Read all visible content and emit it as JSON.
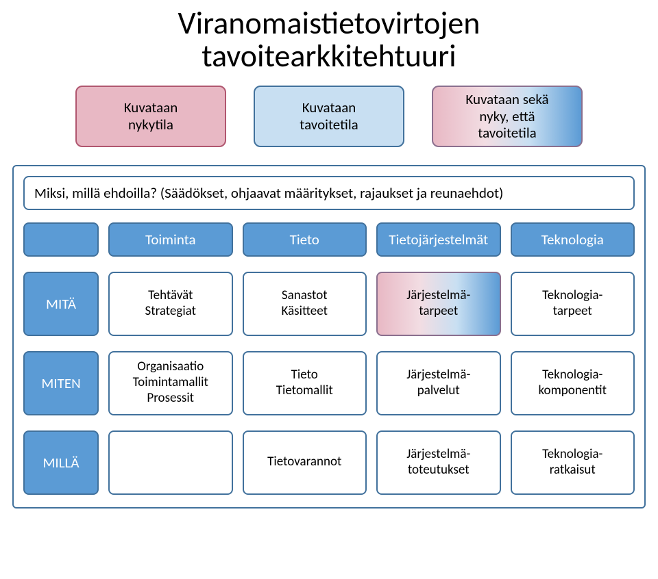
{
  "title_line1": "Viranomaistietovirtojen",
  "title_line2": "tavoitearkkitehtuuri",
  "colors": {
    "blue_border": "#41719c",
    "blue_fill": "#5b9bd5",
    "blue_light": "#c8dff2",
    "pink_border": "#b0566f",
    "pink_fill": "#e8b8c4",
    "pink_light": "#f2dde3",
    "grad_border": "#8a6f8e"
  },
  "top_boxes": [
    {
      "text": "Kuvataan\nnykytila",
      "fill_mode": "pink"
    },
    {
      "text": "Kuvataan\ntavoitetila",
      "fill_mode": "blue"
    },
    {
      "text": "Kuvataan sekä\nnyky, että\ntavoitetila",
      "fill_mode": "gradient"
    }
  ],
  "miksi_text": "Miksi, millä ehdoilla? (Säädökset, ohjaavat määritykset, rajaukset ja reunaehdot)",
  "col_headers": [
    {
      "label": ""
    },
    {
      "label": "Toiminta"
    },
    {
      "label": "Tieto"
    },
    {
      "label": "Tietojärjestelmät"
    },
    {
      "label": "Teknologia"
    }
  ],
  "rows": [
    {
      "label": "MITÄ",
      "cells": [
        {
          "text": "Tehtävät\nStrategiat",
          "fill_mode": "white"
        },
        {
          "text": "Sanastot\nKäsitteet",
          "fill_mode": "white"
        },
        {
          "text": "Järjestelmä-\ntarpeet",
          "fill_mode": "gradient"
        },
        {
          "text": "Teknologia-\ntarpeet",
          "fill_mode": "white"
        }
      ]
    },
    {
      "label": "MITEN",
      "cells": [
        {
          "text": "Organisaatio\nToimintamallit\nProsessit",
          "fill_mode": "white"
        },
        {
          "text": "Tieto\nTietomallit",
          "fill_mode": "white"
        },
        {
          "text": "Järjestelmä-\npalvelut",
          "fill_mode": "white"
        },
        {
          "text": "Teknologia-\nkomponentit",
          "fill_mode": "white"
        }
      ]
    },
    {
      "label": "MILLÄ",
      "cells": [
        {
          "text": "",
          "fill_mode": "white"
        },
        {
          "text": "Tietovarannot",
          "fill_mode": "white"
        },
        {
          "text": "Järjestelmä-\ntoteutukset",
          "fill_mode": "white"
        },
        {
          "text": "Teknologia-\nratkaisut",
          "fill_mode": "white"
        }
      ]
    }
  ]
}
